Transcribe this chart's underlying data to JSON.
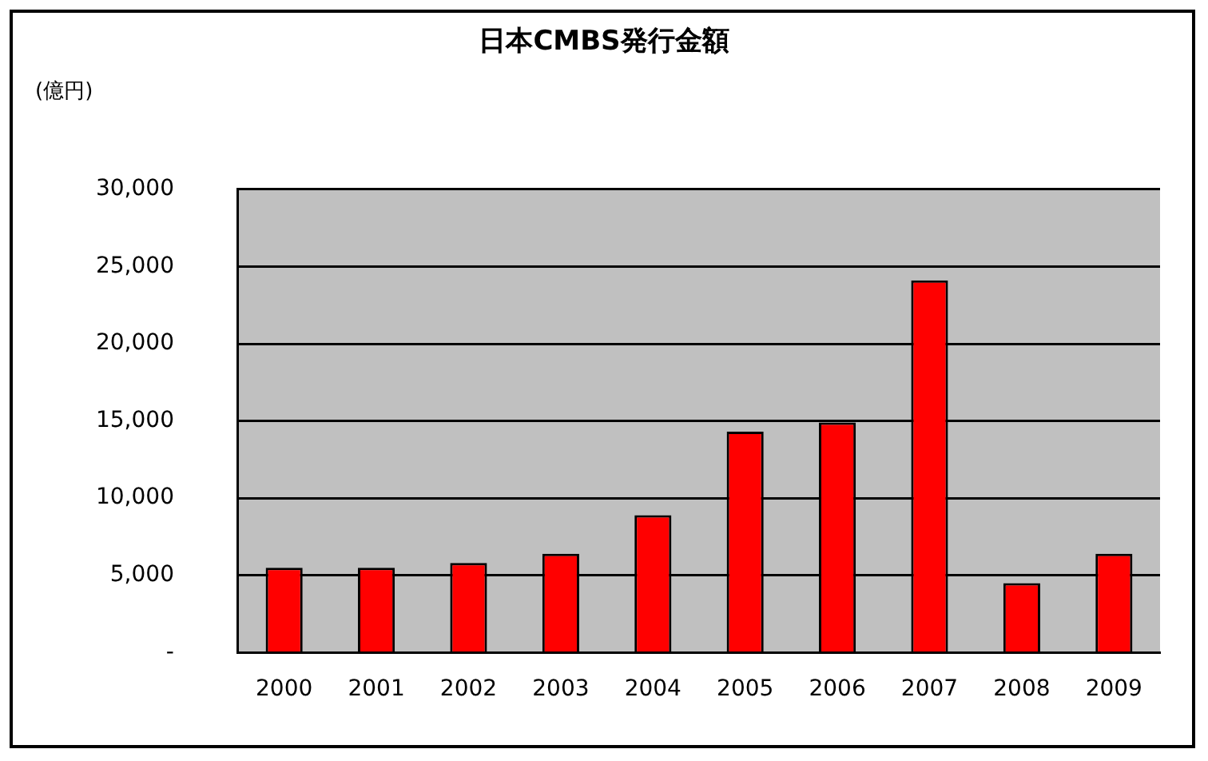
{
  "chart_data": {
    "type": "bar",
    "title": "日本CMBS発行金額",
    "ylabel": "(億円)",
    "categories": [
      "2000",
      "2001",
      "2002",
      "2003",
      "2004",
      "2005",
      "2006",
      "2007",
      "2008",
      "2009"
    ],
    "values": [
      5500,
      5500,
      5800,
      6400,
      8900,
      14300,
      14900,
      24100,
      4500,
      6400
    ],
    "color": "#ff0000",
    "ylim": [
      0,
      30000
    ],
    "yticks": [
      {
        "value": 0,
        "label": "-"
      },
      {
        "value": 5000,
        "label": "5,000"
      },
      {
        "value": 10000,
        "label": "10,000"
      },
      {
        "value": 15000,
        "label": "15,000"
      },
      {
        "value": 20000,
        "label": "20,000"
      },
      {
        "value": 25000,
        "label": "25,000"
      },
      {
        "value": 30000,
        "label": "30,000"
      }
    ],
    "grid": "y",
    "legend": false
  }
}
